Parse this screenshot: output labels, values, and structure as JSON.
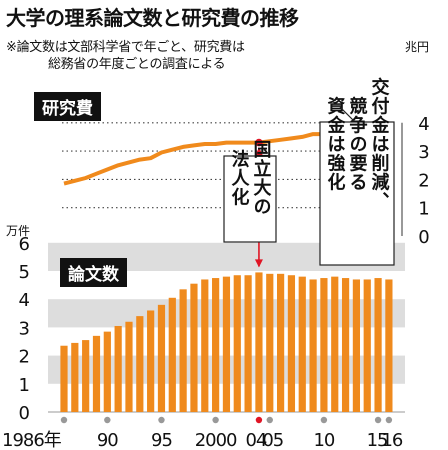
{
  "title": "大学の理系論文数と研究費の推移",
  "note_line1": "※論文数は文部科学省で年ごと、研究費は",
  "note_line2": "総務省の年度ごとの調査による",
  "colors": {
    "orange": "#f08a1c",
    "bar": "#ef8a1d",
    "red": "#e01525",
    "band": "#dddddd",
    "text": "#111111"
  },
  "chart_data": [
    {
      "type": "line",
      "series": [
        {
          "name": "研究費",
          "x": [
            1986,
            1987,
            1988,
            1989,
            1990,
            1991,
            1992,
            1993,
            1994,
            1995,
            1996,
            1997,
            1998,
            1999,
            2000,
            2001,
            2002,
            2003,
            2004,
            2005,
            2006,
            2007,
            2008,
            2009,
            2010,
            2011,
            2012,
            2013,
            2014,
            2015,
            2016
          ],
          "values": [
            1.85,
            1.95,
            2.05,
            2.2,
            2.35,
            2.5,
            2.6,
            2.7,
            2.75,
            2.95,
            3.05,
            3.15,
            3.2,
            3.25,
            3.25,
            3.3,
            3.3,
            3.3,
            3.3,
            3.35,
            3.4,
            3.45,
            3.5,
            3.6,
            3.6,
            3.6,
            3.65,
            3.55,
            3.5,
            3.55,
            3.6
          ]
        }
      ],
      "ylabel_unit": "兆円",
      "ylim": [
        0,
        4
      ],
      "yticks": [
        "0",
        "1",
        "2",
        "3",
        "4"
      ]
    },
    {
      "type": "bar",
      "categories": [
        1986,
        1987,
        1988,
        1989,
        1990,
        1991,
        1992,
        1993,
        1994,
        1995,
        1996,
        1997,
        1998,
        1999,
        2000,
        2001,
        2002,
        2003,
        2004,
        2005,
        2006,
        2007,
        2008,
        2009,
        2010,
        2011,
        2012,
        2013,
        2014,
        2015,
        2016
      ],
      "series": [
        {
          "name": "論文数",
          "values": [
            2.35,
            2.45,
            2.55,
            2.7,
            2.85,
            3.05,
            3.2,
            3.4,
            3.6,
            3.8,
            4.05,
            4.35,
            4.55,
            4.7,
            4.75,
            4.8,
            4.85,
            4.85,
            4.95,
            4.9,
            4.9,
            4.85,
            4.8,
            4.7,
            4.75,
            4.8,
            4.75,
            4.7,
            4.7,
            4.75,
            4.7
          ]
        }
      ],
      "ylabel_unit": "万件",
      "ylim": [
        0,
        6
      ],
      "yticks": [
        "0",
        "1",
        "2",
        "3",
        "4",
        "5",
        "6"
      ]
    }
  ],
  "x_tick_labels": [
    {
      "year": 1986,
      "label": "1986年"
    },
    {
      "year": 1990,
      "label": "90"
    },
    {
      "year": 1995,
      "label": "95"
    },
    {
      "year": 2000,
      "label": "2000"
    },
    {
      "year": 2004,
      "label": "04"
    },
    {
      "year": 2005,
      "label": "05"
    },
    {
      "year": 2010,
      "label": "10"
    },
    {
      "year": 2015,
      "label": "15"
    },
    {
      "year": 2016,
      "label": "16"
    }
  ],
  "annotation_corp": "国立大の法人化",
  "annotation_cut": "交付金は削減、競争の要る資金は強化"
}
